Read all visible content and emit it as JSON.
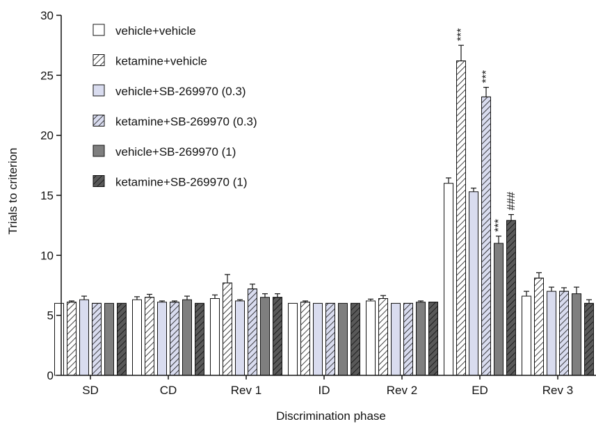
{
  "chart_data": {
    "type": "bar",
    "xlabel": "Discrimination phase",
    "ylabel": "Trials to criterion",
    "ylim": [
      0,
      30
    ],
    "yticks": [
      "0",
      "5",
      "10",
      "15",
      "20",
      "25",
      "30"
    ],
    "categories": [
      "SD",
      "CD",
      "Rev 1",
      "ID",
      "Rev 2",
      "ED",
      "Rev 3"
    ],
    "series": [
      {
        "name": "vehicle+vehicle",
        "fill": "#ffffff",
        "hatch": false,
        "values": [
          6.0,
          6.3,
          6.4,
          6.0,
          6.2,
          16.0,
          6.6
        ],
        "errors": [
          0.0,
          0.25,
          0.3,
          0.0,
          0.15,
          0.45,
          0.4
        ]
      },
      {
        "name": "ketamine+vehicle",
        "fill": "#ffffff",
        "hatch": true,
        "values": [
          6.1,
          6.5,
          7.7,
          6.1,
          6.4,
          26.2,
          8.1
        ],
        "errors": [
          0.1,
          0.25,
          0.7,
          0.1,
          0.25,
          1.3,
          0.45
        ]
      },
      {
        "name": "vehicle+SB-269970 (0.3)",
        "fill": "#d9dcef",
        "hatch": false,
        "values": [
          6.3,
          6.1,
          6.2,
          6.0,
          6.0,
          15.3,
          7.0
        ],
        "errors": [
          0.3,
          0.1,
          0.1,
          0.0,
          0.0,
          0.3,
          0.35
        ]
      },
      {
        "name": "ketamine+SB-269970 (0.3)",
        "fill": "#d9dcef",
        "hatch": true,
        "values": [
          6.0,
          6.1,
          7.2,
          6.0,
          6.0,
          23.2,
          7.0
        ],
        "errors": [
          0.0,
          0.1,
          0.4,
          0.0,
          0.0,
          0.8,
          0.3
        ]
      },
      {
        "name": "vehicle+SB-269970 (1)",
        "fill": "#7f7f7f",
        "hatch": false,
        "values": [
          6.0,
          6.3,
          6.5,
          6.0,
          6.1,
          11.0,
          6.8
        ],
        "errors": [
          0.0,
          0.3,
          0.3,
          0.0,
          0.1,
          0.6,
          0.55
        ]
      },
      {
        "name": "ketamine+SB-269970 (1)",
        "fill": "#595959",
        "hatch": true,
        "values": [
          6.0,
          6.0,
          6.5,
          6.0,
          6.1,
          12.9,
          6.0
        ],
        "errors": [
          0.0,
          0.0,
          0.3,
          0.0,
          0.0,
          0.5,
          0.3
        ]
      }
    ],
    "annotations": [
      {
        "category": "ED",
        "series": 1,
        "text": "***"
      },
      {
        "category": "ED",
        "series": 3,
        "text": "***"
      },
      {
        "category": "ED",
        "series": 4,
        "text": "***"
      },
      {
        "category": "ED",
        "series": 5,
        "text": "###"
      }
    ],
    "legend_placement": "top-left",
    "grid": false
  }
}
